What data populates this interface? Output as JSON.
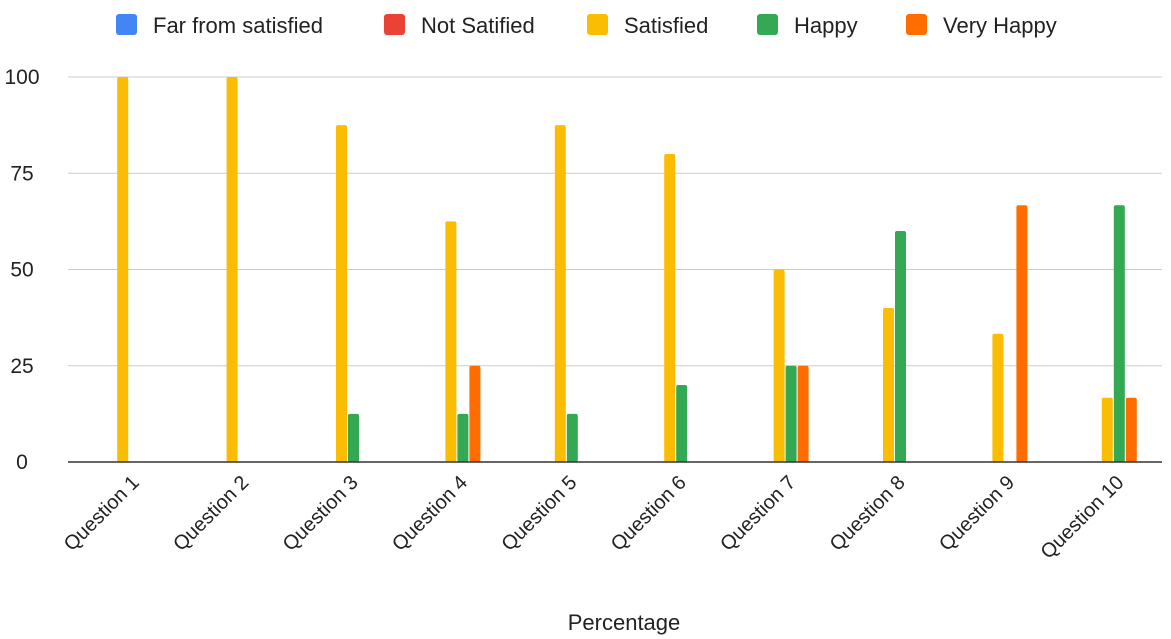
{
  "chart_data": {
    "type": "bar",
    "title": "",
    "xlabel": "Percentage",
    "ylabel": "",
    "ylim": [
      0,
      100
    ],
    "yticks": [
      "0",
      "25",
      "50",
      "75",
      "100"
    ],
    "grid": true,
    "legend_position": "top",
    "categories": [
      "Question 1",
      "Question 2",
      "Question 3",
      "Question 4",
      "Question 5",
      "Question 6",
      "Question 7",
      "Question 8",
      "Question 9",
      "Question 10"
    ],
    "series": [
      {
        "name": "Far from satisfied",
        "color": "#4285f4",
        "values": [
          0,
          0,
          0,
          0,
          0,
          0,
          0,
          0,
          0,
          0
        ]
      },
      {
        "name": "Not Satified",
        "color": "#ea4335",
        "values": [
          0,
          0,
          0,
          0,
          0,
          0,
          0,
          0,
          0,
          0
        ]
      },
      {
        "name": "Satisfied",
        "color": "#fbbc04",
        "values": [
          100,
          100,
          87.5,
          62.5,
          87.5,
          80,
          50,
          40,
          33.3,
          16.7
        ]
      },
      {
        "name": "Happy",
        "color": "#34a853",
        "values": [
          0,
          0,
          12.5,
          12.5,
          12.5,
          20,
          25,
          60,
          0,
          66.7
        ]
      },
      {
        "name": "Very Happy",
        "color": "#ff6d01",
        "values": [
          0,
          0,
          0,
          25,
          0,
          0,
          25,
          0,
          66.7,
          16.7
        ]
      }
    ]
  }
}
